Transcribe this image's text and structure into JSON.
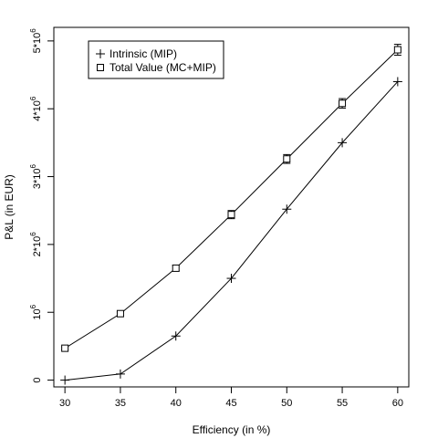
{
  "chart_data": {
    "type": "line",
    "title": "",
    "xlabel": "Efficiency (in %)",
    "ylabel": "P&L (in EUR)",
    "xlim": [
      29,
      61
    ],
    "ylim": [
      -100000,
      5200000
    ],
    "x_ticks": [
      30,
      35,
      40,
      45,
      50,
      55,
      60
    ],
    "x_tick_labels": [
      "30",
      "35",
      "40",
      "45",
      "50",
      "55",
      "60"
    ],
    "y_ticks": [
      0,
      1000000,
      2000000,
      3000000,
      4000000,
      5000000
    ],
    "y_tick_labels": [
      {
        "base": "0",
        "sup": ""
      },
      {
        "base": "10",
        "sup": "6"
      },
      {
        "base": "2*10",
        "sup": "6"
      },
      {
        "base": "3*10",
        "sup": "6"
      },
      {
        "base": "4*10",
        "sup": "6"
      },
      {
        "base": "5*10",
        "sup": "6"
      }
    ],
    "grid": false,
    "legend_position": "top-left",
    "x": [
      30,
      35,
      40,
      45,
      50,
      55,
      60
    ],
    "series": [
      {
        "name": "Intrinsic (MIP)",
        "marker": "plus",
        "values": [
          0,
          90000,
          650000,
          1500000,
          2520000,
          3500000,
          4400000
        ]
      },
      {
        "name": "Total Value (MC+MIP)",
        "marker": "square",
        "values": [
          470000,
          980000,
          1650000,
          2440000,
          3260000,
          4080000,
          4870000
        ],
        "error": [
          20000,
          25000,
          40000,
          60000,
          65000,
          70000,
          80000
        ]
      }
    ]
  }
}
